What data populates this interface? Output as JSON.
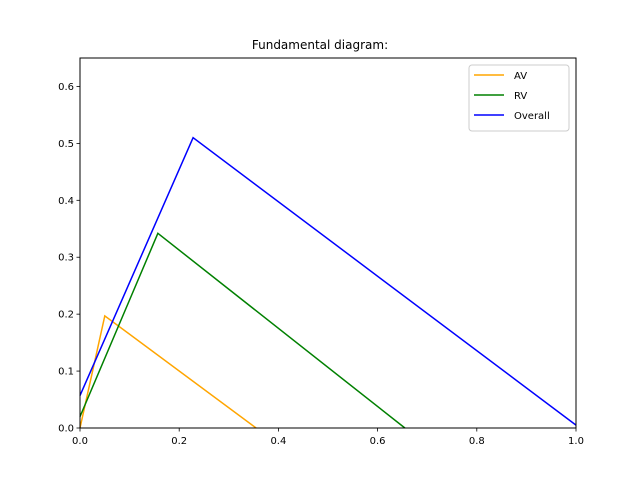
{
  "chart_data": {
    "type": "line",
    "title": "Fundamental diagram:",
    "xlabel": "",
    "ylabel": "",
    "xlim": [
      0.0,
      1.0
    ],
    "ylim": [
      0.0,
      0.65
    ],
    "xticks": [
      0.0,
      0.2,
      0.4,
      0.6,
      0.8,
      1.0
    ],
    "xtick_labels": [
      "0.0",
      "0.2",
      "0.4",
      "0.6",
      "0.8",
      "1.0"
    ],
    "yticks": [
      0.0,
      0.1,
      0.2,
      0.3,
      0.4,
      0.5,
      0.6
    ],
    "ytick_labels": [
      "0.0",
      "0.1",
      "0.2",
      "0.3",
      "0.4",
      "0.5",
      "0.6"
    ],
    "grid": false,
    "legend_position": "top-right",
    "series": [
      {
        "name": "AV",
        "color": "#ffa500",
        "x": [
          0.0,
          0.05,
          0.355
        ],
        "y": [
          0.0,
          0.197,
          0.0
        ]
      },
      {
        "name": "RV",
        "color": "#008000",
        "x": [
          0.0,
          0.157,
          0.655
        ],
        "y": [
          0.02,
          0.342,
          0.0
        ]
      },
      {
        "name": "Overall",
        "color": "#0000ff",
        "x": [
          0.0,
          0.228,
          1.0
        ],
        "y": [
          0.057,
          0.51,
          0.005
        ]
      }
    ]
  }
}
